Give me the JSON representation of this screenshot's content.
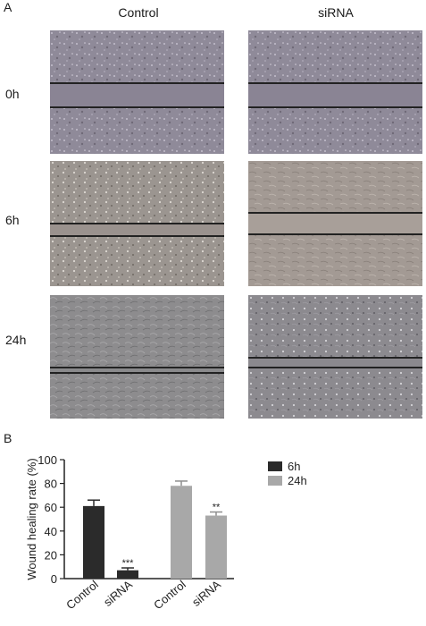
{
  "panel_a": {
    "label": "A",
    "columns": [
      "Control",
      "siRNA"
    ],
    "rows": [
      {
        "label": "0h"
      },
      {
        "label": "6h"
      },
      {
        "label": "24h"
      }
    ]
  },
  "panel_b": {
    "label": "B"
  },
  "chart_data": {
    "type": "bar",
    "ylabel": "Wound healing rate (%)",
    "ylim": [
      0,
      100
    ],
    "yticks": [
      "0",
      "20",
      "40",
      "60",
      "80",
      "100"
    ],
    "groups": [
      {
        "category": "Control",
        "series": "6h",
        "value": 61,
        "error": 5,
        "annotation": ""
      },
      {
        "category": "siRNA",
        "series": "6h",
        "value": 7,
        "error": 2,
        "annotation": "***"
      },
      {
        "category": "Control",
        "series": "24h",
        "value": 78,
        "error": 4,
        "annotation": ""
      },
      {
        "category": "siRNA",
        "series": "24h",
        "value": 53,
        "error": 3,
        "annotation": "**"
      }
    ],
    "legend": [
      {
        "name": "6h",
        "color": "#2b2b2b"
      },
      {
        "name": "24h",
        "color": "#a8a8a8"
      }
    ],
    "legend_position": "right"
  }
}
